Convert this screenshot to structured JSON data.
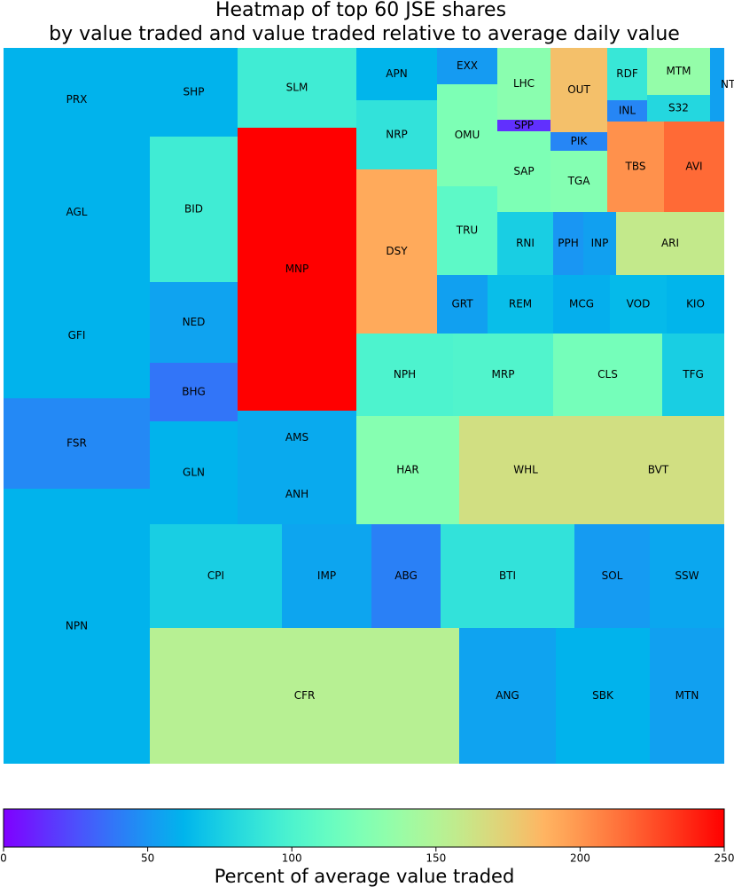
{
  "chart_data": {
    "type": "treemap",
    "title": [
      "Heatmap of top 60 JSE shares",
      "by value traded and value traded relative to average daily value"
    ],
    "categories": [
      "PRX",
      "AGL",
      "GFI",
      "FSR",
      "NPN",
      "SHP",
      "BID",
      "NED",
      "BHG",
      "GLN",
      "SLM",
      "MNP",
      "AMS",
      "ANH",
      "CPI",
      "IMP",
      "ABG",
      "BTI",
      "SOL",
      "SSW",
      "CFR",
      "ANG",
      "SBK",
      "MTN",
      "APN",
      "NRP",
      "DSY",
      "EXX",
      "OMU",
      "TRU",
      "LHC",
      "SPP",
      "SAP",
      "OUT",
      "PIK",
      "TGA",
      "RDF",
      "INL",
      "MTM",
      "S32",
      "NTC",
      "TBS",
      "AVI",
      "RNI",
      "PPH",
      "INP",
      "ARI",
      "GRT",
      "REM",
      "MCG",
      "VOD",
      "KIO",
      "NPH",
      "MRP",
      "CLS",
      "TFG",
      "HAR",
      "WHL",
      "BVT"
    ],
    "values": [
      62,
      62,
      62,
      45,
      62,
      62,
      94,
      55,
      38,
      62,
      94,
      250,
      58,
      58,
      75,
      56,
      42,
      87,
      52,
      57,
      152,
      55,
      62,
      54,
      63,
      87,
      192,
      52,
      124,
      108,
      130,
      15,
      124,
      182,
      44,
      127,
      90,
      44,
      135,
      80,
      54,
      202,
      216,
      75,
      50,
      54,
      158,
      54,
      67,
      60,
      65,
      63,
      100,
      102,
      120,
      75,
      128,
      165,
      165
    ],
    "colormap": "rainbow",
    "clim": [
      0,
      250
    ],
    "colorbar_ticks": [
      0,
      50,
      100,
      150,
      200,
      250
    ],
    "colorbar_label": "Percent of average value traded"
  }
}
